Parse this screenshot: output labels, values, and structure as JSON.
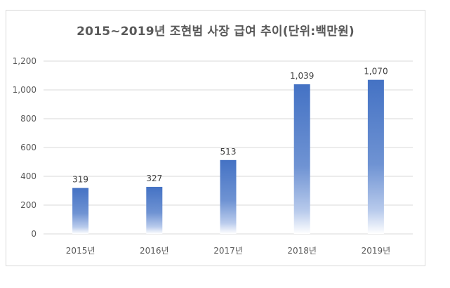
{
  "chart_data": {
    "type": "bar",
    "title": "2015~2019년 조현범 사장 급여 추이(단위:백만원)",
    "categories": [
      "2015년",
      "2016년",
      "2017년",
      "2018년",
      "2019년"
    ],
    "values": [
      319,
      327,
      513,
      1039,
      1070
    ],
    "value_labels": [
      "319",
      "327",
      "513",
      "1,039",
      "1,070"
    ],
    "ylim": [
      0,
      1200
    ],
    "yticks": [
      0,
      200,
      400,
      600,
      800,
      1000,
      1200
    ],
    "ytick_labels": [
      "0",
      "200",
      "400",
      "600",
      "800",
      "1,000",
      "1,200"
    ],
    "grid": true,
    "legend": false,
    "bar_color": "#4472c4",
    "xlabel": "",
    "ylabel": ""
  }
}
